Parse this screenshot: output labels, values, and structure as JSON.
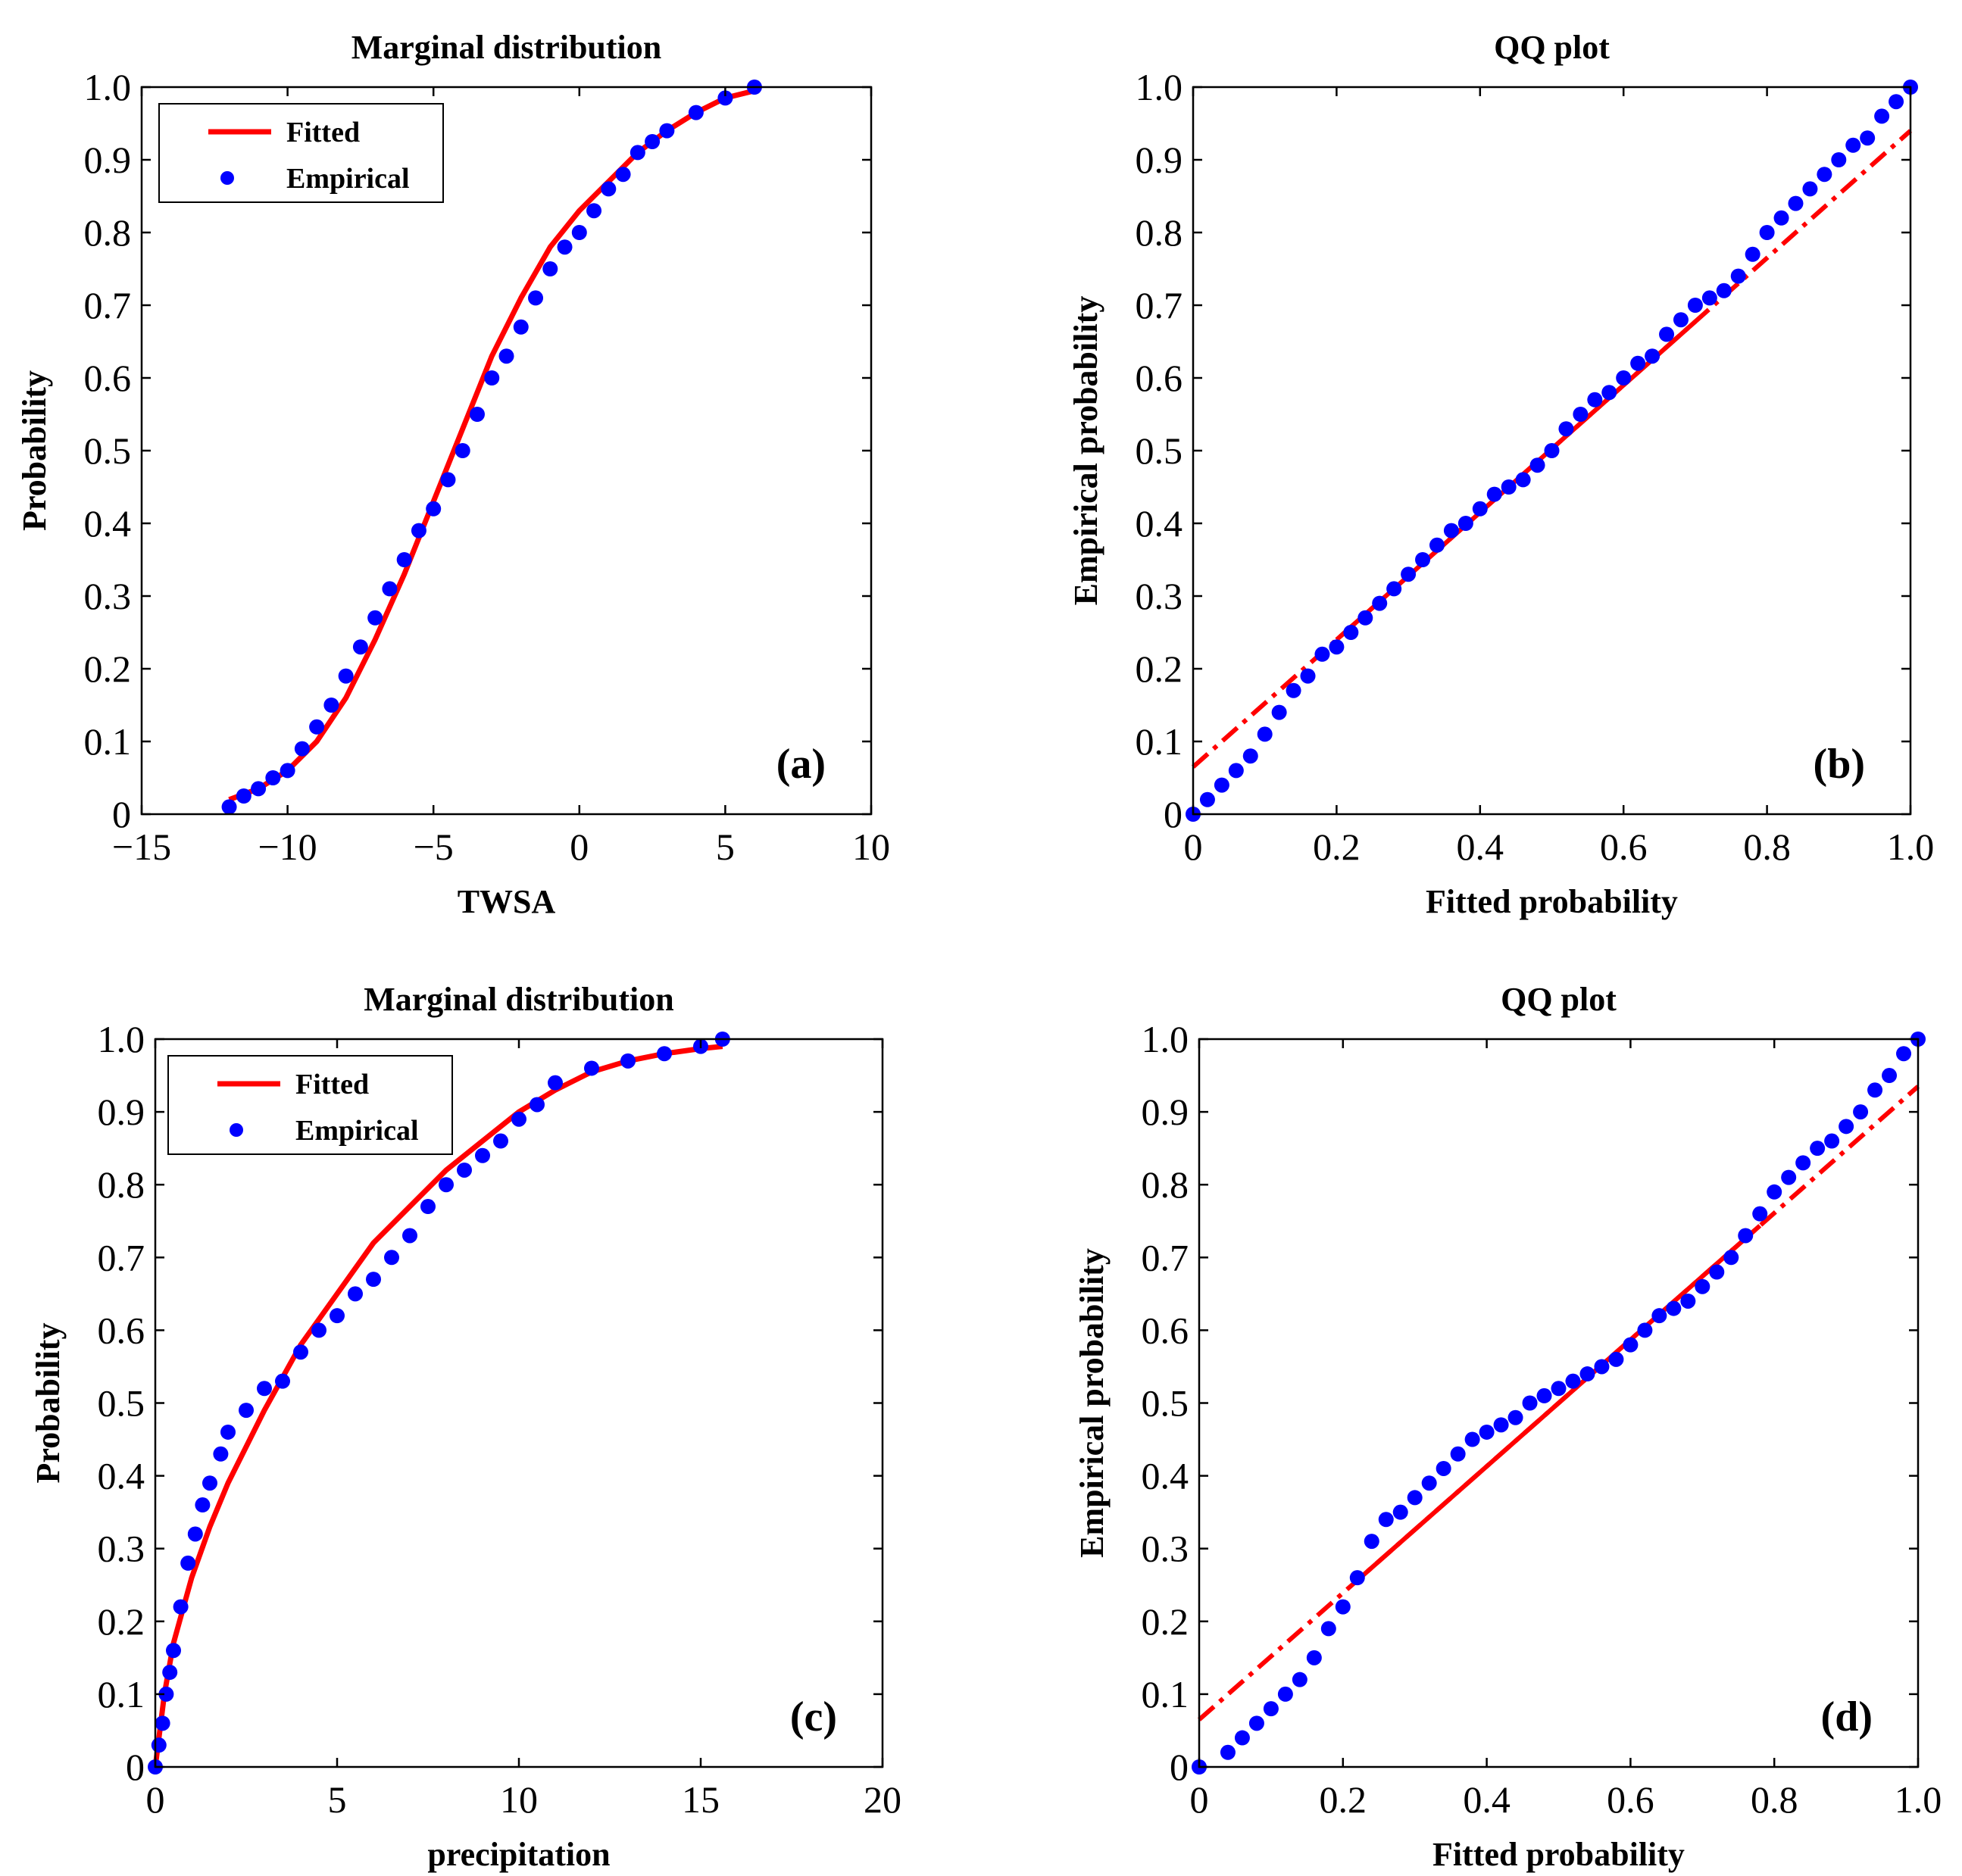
{
  "colors": {
    "fitted": "#ff0000",
    "empirical": "#0000ff",
    "axes": "#000000",
    "background": "#ffffff"
  },
  "chart_data": [
    {
      "panel": "(a)",
      "type": "line",
      "title": "Marginal distribution",
      "xlabel": "TWSA",
      "ylabel": "Probability",
      "xlim": [
        -15,
        10
      ],
      "ylim": [
        0,
        1
      ],
      "xticks": [
        -15,
        -10,
        -5,
        0,
        5,
        10
      ],
      "xtick_labels": [
        "−15",
        "−10",
        "−5",
        "0",
        "5",
        "10"
      ],
      "yticks": [
        0,
        0.1,
        0.2,
        0.3,
        0.4,
        0.5,
        0.6,
        0.7,
        0.8,
        0.9,
        1.0
      ],
      "ytick_labels": [
        "0",
        "0.1",
        "0.2",
        "0.3",
        "0.4",
        "0.5",
        "0.6",
        "0.7",
        "0.8",
        "0.9",
        "1.0"
      ],
      "legend": {
        "position": "top-left",
        "entries": [
          "Fitted",
          "Empirical"
        ]
      },
      "series": [
        {
          "name": "Fitted",
          "style": "solid-line",
          "x": [
            -12,
            -11,
            -10,
            -9,
            -8,
            -7,
            -6,
            -5,
            -4,
            -3,
            -2,
            -1,
            0,
            1,
            2,
            3,
            4,
            5,
            6
          ],
          "y": [
            0.02,
            0.035,
            0.06,
            0.1,
            0.16,
            0.24,
            0.33,
            0.43,
            0.53,
            0.63,
            0.71,
            0.78,
            0.83,
            0.87,
            0.91,
            0.94,
            0.965,
            0.985,
            0.995
          ]
        },
        {
          "name": "Empirical",
          "style": "dots",
          "x": [
            -12,
            -11.5,
            -11,
            -10.5,
            -10,
            -9.5,
            -9,
            -8.5,
            -8,
            -7.5,
            -7,
            -6.5,
            -6,
            -5.5,
            -5,
            -4.5,
            -4,
            -3.5,
            -3,
            -2.5,
            -2,
            -1.5,
            -1,
            -0.5,
            0,
            0.5,
            1,
            1.5,
            2,
            2.5,
            3,
            4,
            5,
            6
          ],
          "y": [
            0.01,
            0.025,
            0.035,
            0.05,
            0.06,
            0.09,
            0.12,
            0.15,
            0.19,
            0.23,
            0.27,
            0.31,
            0.35,
            0.39,
            0.42,
            0.46,
            0.5,
            0.55,
            0.6,
            0.63,
            0.67,
            0.71,
            0.75,
            0.78,
            0.8,
            0.83,
            0.86,
            0.88,
            0.91,
            0.925,
            0.94,
            0.965,
            0.985,
            1.0
          ]
        }
      ]
    },
    {
      "panel": "(b)",
      "type": "scatter",
      "title": "QQ plot",
      "xlabel": "Fitted probability",
      "ylabel": "Empirical probability",
      "xlim": [
        0,
        1
      ],
      "ylim": [
        0,
        1
      ],
      "xticks": [
        0,
        0.2,
        0.4,
        0.6,
        0.8,
        1.0
      ],
      "xtick_labels": [
        "0",
        "0.2",
        "0.4",
        "0.6",
        "0.8",
        "1.0"
      ],
      "yticks": [
        0,
        0.1,
        0.2,
        0.3,
        0.4,
        0.5,
        0.6,
        0.7,
        0.8,
        0.9,
        1.0
      ],
      "ytick_labels": [
        "0",
        "0.1",
        "0.2",
        "0.3",
        "0.4",
        "0.5",
        "0.6",
        "0.7",
        "0.8",
        "0.9",
        "1.0"
      ],
      "fit_line": {
        "x": [
          0,
          1
        ],
        "y": [
          0.065,
          0.94
        ],
        "solid_range": [
          0.2,
          0.7
        ]
      },
      "series": [
        {
          "name": "Empirical",
          "style": "dots",
          "x": [
            0,
            0.02,
            0.04,
            0.06,
            0.08,
            0.1,
            0.12,
            0.14,
            0.16,
            0.18,
            0.2,
            0.22,
            0.24,
            0.26,
            0.28,
            0.3,
            0.32,
            0.34,
            0.36,
            0.38,
            0.4,
            0.42,
            0.44,
            0.46,
            0.48,
            0.5,
            0.52,
            0.54,
            0.56,
            0.58,
            0.6,
            0.62,
            0.64,
            0.66,
            0.68,
            0.7,
            0.72,
            0.74,
            0.76,
            0.78,
            0.8,
            0.82,
            0.84,
            0.86,
            0.88,
            0.9,
            0.92,
            0.94,
            0.96,
            0.98,
            1.0
          ],
          "y": [
            0,
            0.02,
            0.04,
            0.06,
            0.08,
            0.11,
            0.14,
            0.17,
            0.19,
            0.22,
            0.23,
            0.25,
            0.27,
            0.29,
            0.31,
            0.33,
            0.35,
            0.37,
            0.39,
            0.4,
            0.42,
            0.44,
            0.45,
            0.46,
            0.48,
            0.5,
            0.53,
            0.55,
            0.57,
            0.58,
            0.6,
            0.62,
            0.63,
            0.66,
            0.68,
            0.7,
            0.71,
            0.72,
            0.74,
            0.77,
            0.8,
            0.82,
            0.84,
            0.86,
            0.88,
            0.9,
            0.92,
            0.93,
            0.96,
            0.98,
            1.0
          ]
        }
      ]
    },
    {
      "panel": "(c)",
      "type": "line",
      "title": "Marginal distribution",
      "xlabel": "precipitation",
      "ylabel": "Probability",
      "xlim": [
        0,
        20
      ],
      "ylim": [
        0,
        1
      ],
      "xticks": [
        0,
        5,
        10,
        15,
        20
      ],
      "xtick_labels": [
        "0",
        "5",
        "10",
        "15",
        "20"
      ],
      "yticks": [
        0,
        0.1,
        0.2,
        0.3,
        0.4,
        0.5,
        0.6,
        0.7,
        0.8,
        0.9,
        1.0
      ],
      "ytick_labels": [
        "0",
        "0.1",
        "0.2",
        "0.3",
        "0.4",
        "0.5",
        "0.6",
        "0.7",
        "0.8",
        "0.9",
        "1.0"
      ],
      "legend": {
        "position": "top-left",
        "entries": [
          "Fitted",
          "Empirical"
        ]
      },
      "series": [
        {
          "name": "Fitted",
          "style": "solid-line",
          "x": [
            0,
            0.25,
            0.5,
            1,
            1.5,
            2,
            3,
            4,
            5,
            6,
            7,
            8,
            9,
            10,
            11,
            12,
            13,
            14,
            15,
            15.6
          ],
          "y": [
            0,
            0.1,
            0.17,
            0.26,
            0.33,
            0.39,
            0.49,
            0.58,
            0.65,
            0.72,
            0.77,
            0.82,
            0.86,
            0.9,
            0.93,
            0.955,
            0.97,
            0.98,
            0.987,
            0.99
          ]
        },
        {
          "name": "Empirical",
          "style": "dots",
          "x": [
            0,
            0.1,
            0.2,
            0.3,
            0.4,
            0.5,
            0.7,
            0.9,
            1.1,
            1.3,
            1.5,
            1.8,
            2,
            2.5,
            3,
            3.5,
            4,
            4.5,
            5,
            5.5,
            6,
            6.5,
            7,
            7.5,
            8,
            8.5,
            9,
            9.5,
            10,
            10.5,
            11,
            12,
            13,
            14,
            15,
            15.6
          ],
          "y": [
            0,
            0.03,
            0.06,
            0.1,
            0.13,
            0.16,
            0.22,
            0.28,
            0.32,
            0.36,
            0.39,
            0.43,
            0.46,
            0.49,
            0.52,
            0.53,
            0.57,
            0.6,
            0.62,
            0.65,
            0.67,
            0.7,
            0.73,
            0.77,
            0.8,
            0.82,
            0.84,
            0.86,
            0.89,
            0.91,
            0.94,
            0.96,
            0.97,
            0.98,
            0.99,
            1.0
          ]
        }
      ]
    },
    {
      "panel": "(d)",
      "type": "scatter",
      "title": "QQ plot",
      "xlabel": "Fitted probability",
      "ylabel": "Empirical probability",
      "xlim": [
        0,
        1
      ],
      "ylim": [
        0,
        1
      ],
      "xticks": [
        0,
        0.2,
        0.4,
        0.6,
        0.8,
        1.0
      ],
      "xtick_labels": [
        "0",
        "0.2",
        "0.4",
        "0.6",
        "0.8",
        "1.0"
      ],
      "yticks": [
        0,
        0.1,
        0.2,
        0.3,
        0.4,
        0.5,
        0.6,
        0.7,
        0.8,
        0.9,
        1.0
      ],
      "ytick_labels": [
        "0",
        "0.1",
        "0.2",
        "0.3",
        "0.4",
        "0.5",
        "0.6",
        "0.7",
        "0.8",
        "0.9",
        "1.0"
      ],
      "fit_line": {
        "x": [
          0,
          1
        ],
        "y": [
          0.065,
          0.935
        ],
        "solid_range": [
          0.22,
          0.78
        ]
      },
      "series": [
        {
          "name": "Empirical",
          "style": "dots",
          "x": [
            0,
            0.04,
            0.06,
            0.08,
            0.1,
            0.12,
            0.14,
            0.16,
            0.18,
            0.2,
            0.22,
            0.24,
            0.26,
            0.28,
            0.3,
            0.32,
            0.34,
            0.36,
            0.38,
            0.4,
            0.42,
            0.44,
            0.46,
            0.48,
            0.5,
            0.52,
            0.54,
            0.56,
            0.58,
            0.6,
            0.62,
            0.64,
            0.66,
            0.68,
            0.7,
            0.72,
            0.74,
            0.76,
            0.78,
            0.8,
            0.82,
            0.84,
            0.86,
            0.88,
            0.9,
            0.92,
            0.94,
            0.96,
            0.98,
            1.0
          ],
          "y": [
            0,
            0.02,
            0.04,
            0.06,
            0.08,
            0.1,
            0.12,
            0.15,
            0.19,
            0.22,
            0.26,
            0.31,
            0.34,
            0.35,
            0.37,
            0.39,
            0.41,
            0.43,
            0.45,
            0.46,
            0.47,
            0.48,
            0.5,
            0.51,
            0.52,
            0.53,
            0.54,
            0.55,
            0.56,
            0.58,
            0.6,
            0.62,
            0.63,
            0.64,
            0.66,
            0.68,
            0.7,
            0.73,
            0.76,
            0.79,
            0.81,
            0.83,
            0.85,
            0.86,
            0.88,
            0.9,
            0.93,
            0.95,
            0.98,
            1.0
          ]
        }
      ]
    }
  ]
}
